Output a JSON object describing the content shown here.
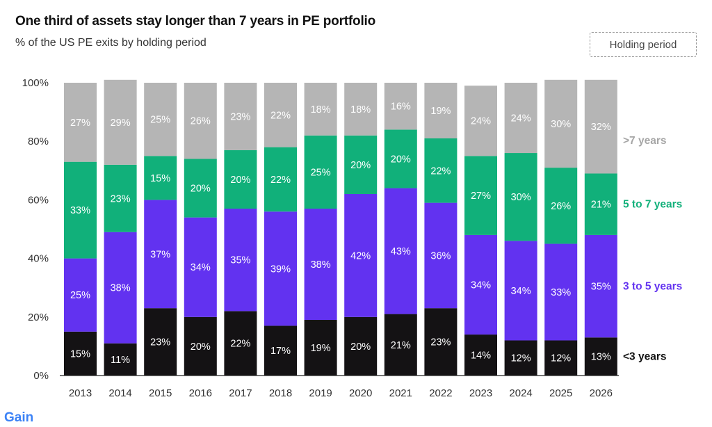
{
  "header": {
    "title": "One third of assets stay longer than 7 years in PE portfolio",
    "subtitle": "% of the US PE exits by holding period",
    "legend_label": "Holding period"
  },
  "brand": {
    "logo_text": "Gain"
  },
  "chart_data": {
    "type": "bar",
    "stacked": true,
    "categories": [
      "2013",
      "2014",
      "2015",
      "2016",
      "2017",
      "2018",
      "2019",
      "2020",
      "2021",
      "2022",
      "2023",
      "2024",
      "2025",
      "2026"
    ],
    "series": [
      {
        "name": "<3 years",
        "color": "#141214",
        "label_color": "#111111",
        "values": [
          15,
          11,
          23,
          20,
          22,
          17,
          19,
          20,
          21,
          23,
          14,
          12,
          12,
          13
        ]
      },
      {
        "name": "3 to 5 years",
        "color": "#6232f0",
        "label_color": "#6232f0",
        "values": [
          25,
          38,
          37,
          34,
          35,
          39,
          38,
          42,
          43,
          36,
          34,
          34,
          33,
          35
        ]
      },
      {
        "name": "5 to 7 years",
        "color": "#11b07a",
        "label_color": "#11b07a",
        "values": [
          33,
          23,
          15,
          20,
          20,
          22,
          25,
          20,
          20,
          22,
          27,
          30,
          26,
          21
        ]
      },
      {
        "name": ">7 years",
        "color": "#b5b5b5",
        "label_color": "#a6a6a6",
        "values": [
          27,
          29,
          25,
          26,
          23,
          22,
          18,
          18,
          16,
          19,
          24,
          24,
          30,
          32
        ]
      }
    ],
    "ylim": [
      0,
      100
    ],
    "yticks": [
      "0%",
      "20%",
      "40%",
      "60%",
      "80%",
      "100%"
    ],
    "value_suffix": "%",
    "legend_placement": "right, aligned with series"
  }
}
